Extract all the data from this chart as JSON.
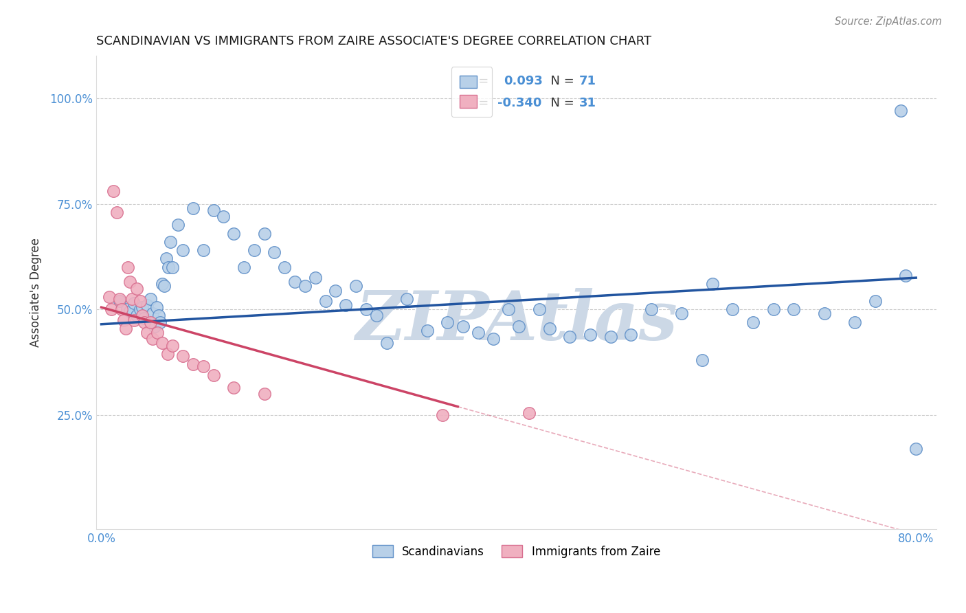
{
  "title": "SCANDINAVIAN VS IMMIGRANTS FROM ZAIRE ASSOCIATE'S DEGREE CORRELATION CHART",
  "source": "Source: ZipAtlas.com",
  "ylabel": "Associate's Degree",
  "xlim": [
    -0.005,
    0.82
  ],
  "ylim": [
    -0.02,
    1.1
  ],
  "xticks": [
    0.0,
    0.2,
    0.4,
    0.6,
    0.8
  ],
  "xtick_labels": [
    "0.0%",
    "",
    "",
    "",
    "80.0%"
  ],
  "yticks": [
    0.25,
    0.5,
    0.75,
    1.0
  ],
  "ytick_labels": [
    "25.0%",
    "50.0%",
    "75.0%",
    "100.0%"
  ],
  "grid_color": "#cccccc",
  "background_color": "#ffffff",
  "blue_fill": "#b8d0e8",
  "blue_edge": "#6090c8",
  "blue_line": "#2255a0",
  "pink_fill": "#f0b0c0",
  "pink_edge": "#d87090",
  "pink_line": "#cc4466",
  "R_blue": 0.093,
  "N_blue": 71,
  "R_pink": -0.34,
  "N_pink": 31,
  "blue_x": [
    0.018,
    0.025,
    0.028,
    0.032,
    0.035,
    0.038,
    0.04,
    0.042,
    0.045,
    0.048,
    0.05,
    0.052,
    0.054,
    0.056,
    0.058,
    0.06,
    0.062,
    0.064,
    0.066,
    0.068,
    0.07,
    0.075,
    0.08,
    0.09,
    0.1,
    0.11,
    0.12,
    0.13,
    0.14,
    0.15,
    0.16,
    0.17,
    0.18,
    0.19,
    0.2,
    0.21,
    0.22,
    0.23,
    0.24,
    0.25,
    0.26,
    0.27,
    0.28,
    0.3,
    0.32,
    0.34,
    0.355,
    0.37,
    0.385,
    0.4,
    0.41,
    0.43,
    0.44,
    0.46,
    0.48,
    0.5,
    0.52,
    0.54,
    0.57,
    0.59,
    0.6,
    0.62,
    0.64,
    0.66,
    0.68,
    0.71,
    0.74,
    0.76,
    0.79,
    0.785,
    0.8
  ],
  "blue_y": [
    0.52,
    0.5,
    0.495,
    0.515,
    0.485,
    0.5,
    0.505,
    0.48,
    0.51,
    0.525,
    0.49,
    0.46,
    0.505,
    0.485,
    0.47,
    0.56,
    0.555,
    0.62,
    0.6,
    0.66,
    0.6,
    0.7,
    0.64,
    0.74,
    0.64,
    0.735,
    0.72,
    0.68,
    0.6,
    0.64,
    0.68,
    0.635,
    0.6,
    0.565,
    0.555,
    0.575,
    0.52,
    0.545,
    0.51,
    0.555,
    0.5,
    0.485,
    0.42,
    0.525,
    0.45,
    0.47,
    0.46,
    0.445,
    0.43,
    0.5,
    0.46,
    0.5,
    0.455,
    0.435,
    0.44,
    0.435,
    0.44,
    0.5,
    0.49,
    0.38,
    0.56,
    0.5,
    0.47,
    0.5,
    0.5,
    0.49,
    0.47,
    0.52,
    0.58,
    0.97,
    0.17
  ],
  "pink_x": [
    0.008,
    0.01,
    0.012,
    0.015,
    0.018,
    0.02,
    0.022,
    0.024,
    0.026,
    0.028,
    0.03,
    0.032,
    0.035,
    0.038,
    0.04,
    0.042,
    0.045,
    0.048,
    0.05,
    0.055,
    0.06,
    0.065,
    0.07,
    0.08,
    0.09,
    0.1,
    0.11,
    0.13,
    0.16,
    0.335,
    0.42
  ],
  "pink_y": [
    0.53,
    0.5,
    0.78,
    0.73,
    0.525,
    0.5,
    0.475,
    0.455,
    0.6,
    0.565,
    0.525,
    0.475,
    0.55,
    0.52,
    0.485,
    0.47,
    0.445,
    0.47,
    0.43,
    0.445,
    0.42,
    0.395,
    0.415,
    0.39,
    0.37,
    0.365,
    0.345,
    0.315,
    0.3,
    0.25,
    0.255
  ],
  "watermark": "ZIPAtlas",
  "watermark_color": "#ccd8e6",
  "value_color": "#4a8fd4",
  "text_color": "#333333"
}
